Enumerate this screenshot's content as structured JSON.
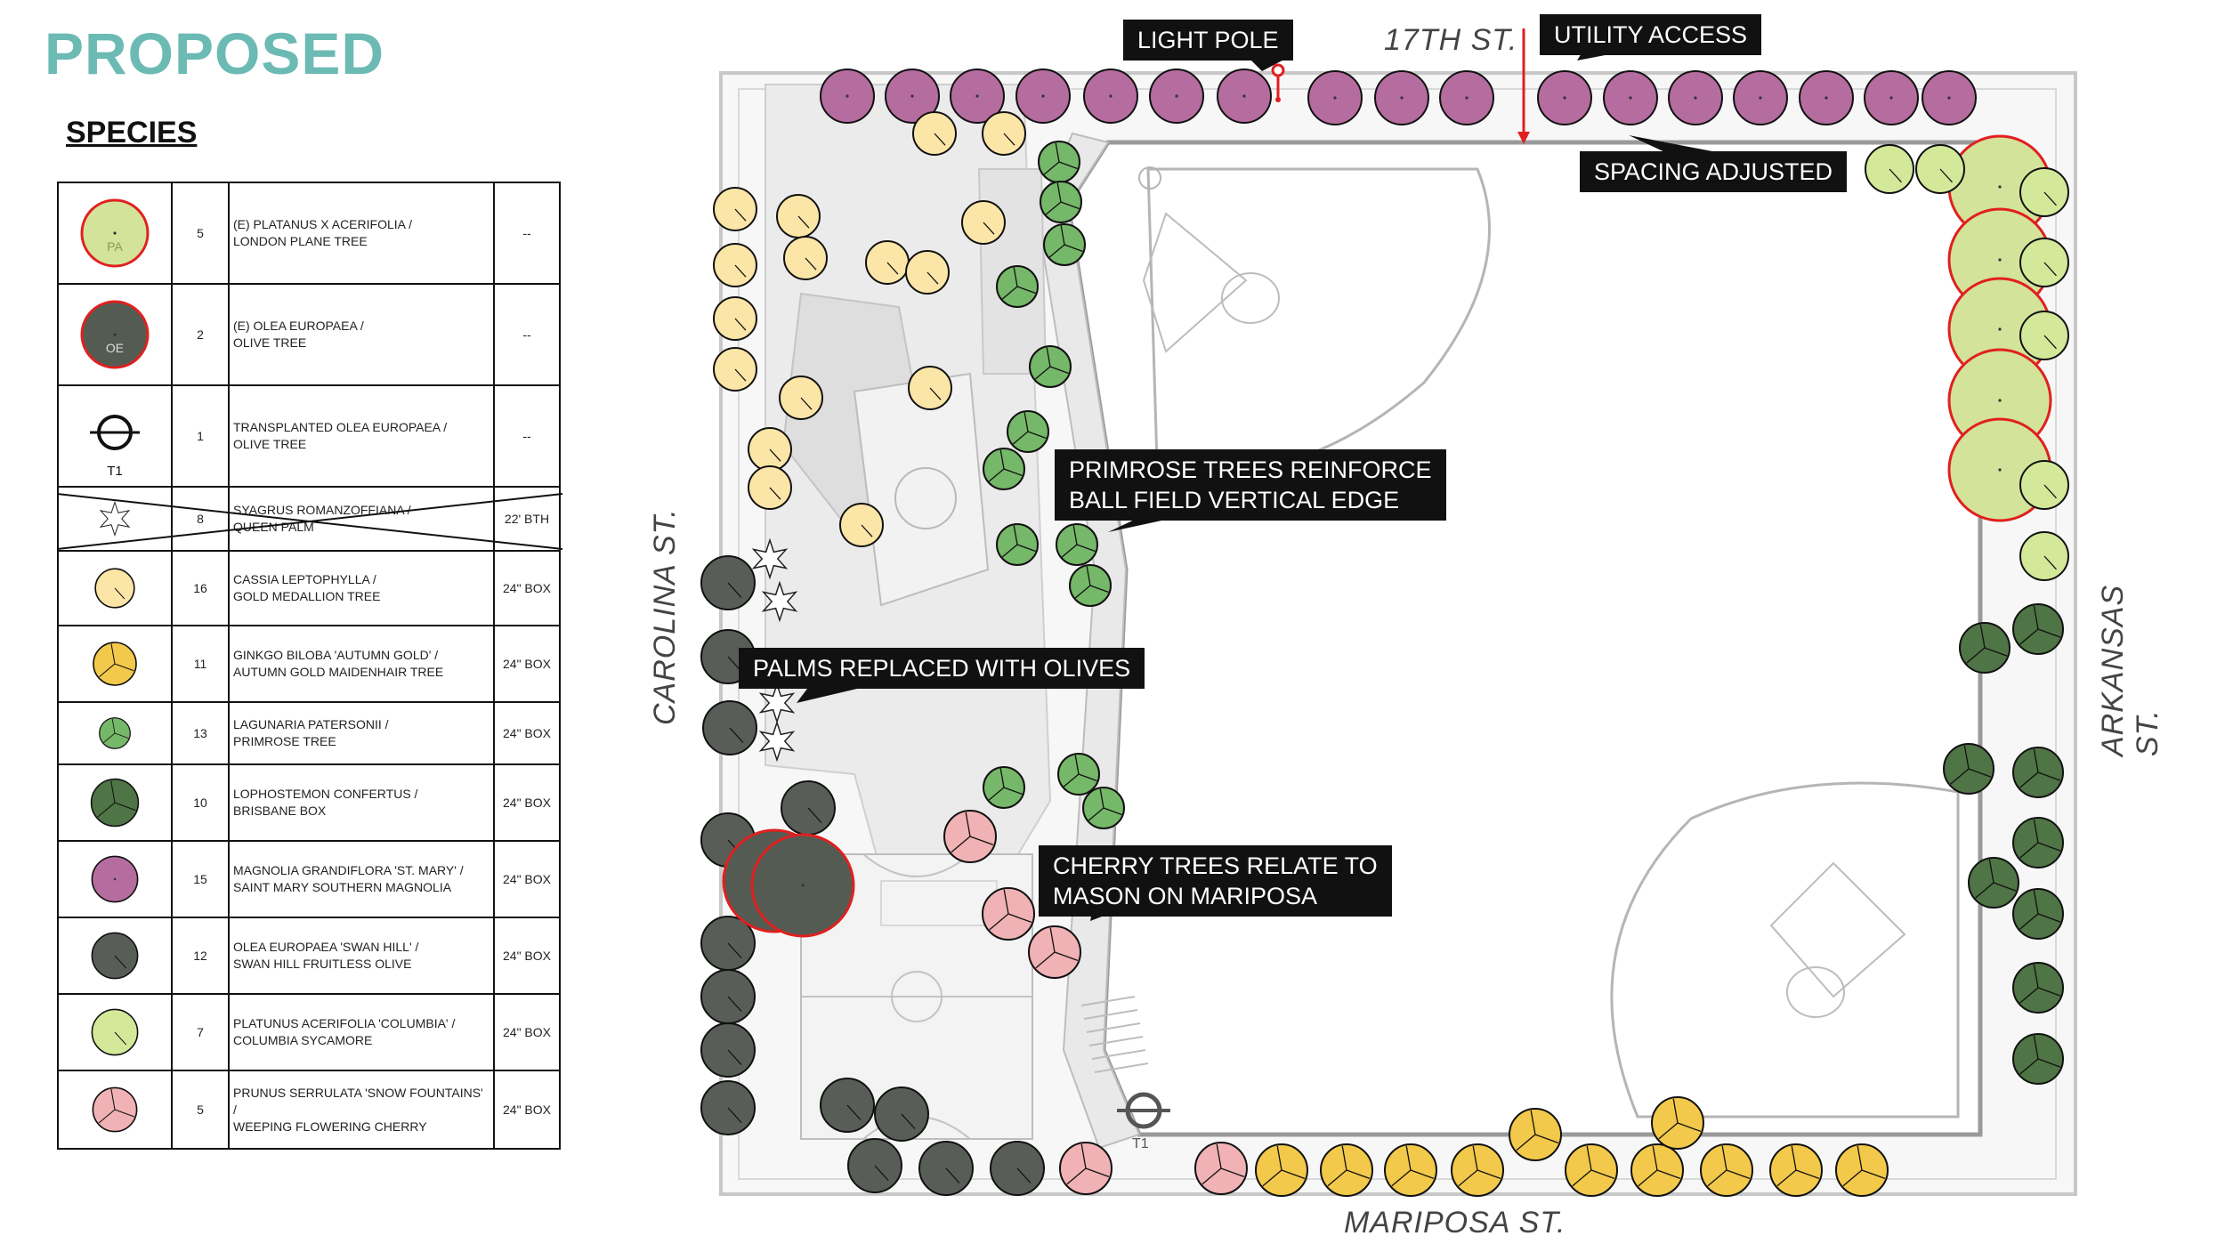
{
  "title": "PROPOSED",
  "species_heading": "SPECIES",
  "colors": {
    "london_plane": "#d3e39a",
    "olive": "#545b53",
    "cassia": "#fbe5a7",
    "ginkgo": "#f2c94a",
    "primrose": "#76b869",
    "brisbane": "#4f7445",
    "magnolia": "#b56c9f",
    "swan_hill": "#585e57",
    "sycamore": "#d4e89a",
    "cherry": "#f0b2b4",
    "existing_ring": "#e0201f",
    "title": "#6cbab4"
  },
  "species": [
    {
      "icon": "london-plane-symbol",
      "code": "PA",
      "count": "5",
      "botanical": "(E) PLATANUS X ACERIFOLIA /",
      "common": "LONDON PLANE TREE",
      "size": "--"
    },
    {
      "icon": "olive-existing-symbol",
      "code": "OE",
      "count": "2",
      "botanical": "(E) OLEA EUROPAEA /",
      "common": "OLIVE TREE",
      "size": "--"
    },
    {
      "icon": "transplanted-olive-symbol",
      "code": "T1",
      "count": "1",
      "botanical": "TRANSPLANTED OLEA EUROPAEA /",
      "common": "OLIVE TREE",
      "size": "--"
    },
    {
      "icon": "queen-palm-symbol",
      "count": "8",
      "botanical": "SYAGRUS ROMANZOFFIANA /",
      "common": "QUEEN PALM",
      "size": "22' BTH"
    },
    {
      "icon": "cassia-symbol",
      "count": "16",
      "botanical": "CASSIA LEPTOPHYLLA /",
      "common": "GOLD MEDALLION TREE",
      "size": "24\" BOX"
    },
    {
      "icon": "ginkgo-symbol",
      "count": "11",
      "botanical": "GINKGO BILOBA 'AUTUMN GOLD' /",
      "common": "AUTUMN GOLD MAIDENHAIR TREE",
      "size": "24\" BOX"
    },
    {
      "icon": "primrose-symbol",
      "count": "13",
      "botanical": "LAGUNARIA PATERSONII /",
      "common": "PRIMROSE TREE",
      "size": "24\" BOX"
    },
    {
      "icon": "brisbane-box-symbol",
      "count": "10",
      "botanical": "LOPHOSTEMON CONFERTUS /",
      "common": "BRISBANE BOX",
      "size": "24\" BOX"
    },
    {
      "icon": "magnolia-symbol",
      "count": "15",
      "botanical": "MAGNOLIA GRANDIFLORA 'ST. MARY' /",
      "common": "SAINT MARY SOUTHERN MAGNOLIA",
      "size": "24\" BOX"
    },
    {
      "icon": "swan-hill-olive-symbol",
      "count": "12",
      "botanical": "OLEA EUROPAEA 'SWAN HILL' /",
      "common": "SWAN HILL FRUITLESS OLIVE",
      "size": "24\" BOX"
    },
    {
      "icon": "sycamore-symbol",
      "count": "7",
      "botanical": "PLATUNUS ACERIFOLIA 'COLUMBIA' /",
      "common": "COLUMBIA SYCAMORE",
      "size": "24\" BOX"
    },
    {
      "icon": "cherry-symbol",
      "count": "5",
      "botanical": "PRUNUS SERRULATA 'SNOW FOUNTAINS' /",
      "common": "WEEPING FLOWERING CHERRY",
      "size": "24\" BOX"
    }
  ],
  "callouts": {
    "light_pole": "LIGHT POLE",
    "utility_access": "UTILITY ACCESS",
    "spacing_adjusted": "SPACING ADJUSTED",
    "primrose_line1": "PRIMROSE TREES REINFORCE",
    "primrose_line2": "BALL FIELD VERTICAL EDGE",
    "palms": "PALMS REPLACED WITH OLIVES",
    "cherry_line1": "CHERRY TREES RELATE TO",
    "cherry_line2": "MASON ON MARIPOSA"
  },
  "streets": {
    "north": "17TH ST.",
    "south": "MARIPOSA ST.",
    "west": "CAROLINA ST.",
    "east": "ARKANSAS ST."
  },
  "plan_tags": {
    "transplant": "T1"
  }
}
